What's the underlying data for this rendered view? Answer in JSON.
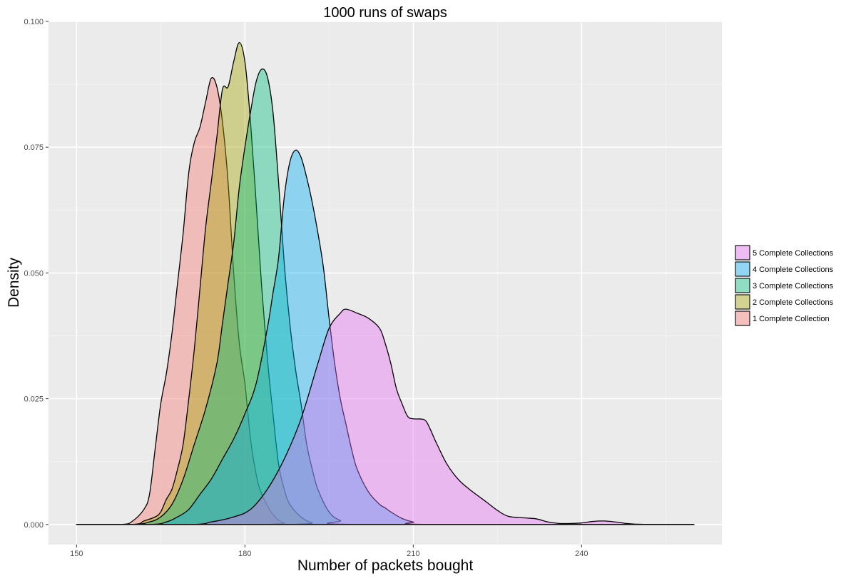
{
  "chart_data": {
    "type": "area",
    "title": "1000 runs of swaps",
    "xlabel": "Number of packets bought",
    "ylabel": "Density",
    "xlim": [
      145,
      265
    ],
    "ylim": [
      -0.004,
      0.1
    ],
    "xticks": [
      150,
      180,
      210,
      240
    ],
    "xtick_labels": [
      "150",
      "180",
      "210",
      "240"
    ],
    "yticks": [
      0,
      0.025,
      0.05,
      0.075,
      0.1
    ],
    "ytick_labels": [
      "0.000",
      "0.025",
      "0.050",
      "0.075",
      "0.100"
    ],
    "grid": true,
    "legend_position": "right",
    "series": [
      {
        "name": "1 Complete Collection",
        "color": "#F8766D",
        "points": [
          [
            150,
            0
          ],
          [
            158,
            0
          ],
          [
            160,
            0.0007
          ],
          [
            162,
            0.003
          ],
          [
            163,
            0.006
          ],
          [
            164,
            0.015
          ],
          [
            165,
            0.024
          ],
          [
            166,
            0.03
          ],
          [
            167,
            0.038
          ],
          [
            168,
            0.048
          ],
          [
            169,
            0.058
          ],
          [
            170,
            0.07
          ],
          [
            171,
            0.076
          ],
          [
            172,
            0.079
          ],
          [
            173,
            0.084
          ],
          [
            174,
            0.0887
          ],
          [
            175,
            0.087
          ],
          [
            176,
            0.08
          ],
          [
            177,
            0.068
          ],
          [
            178,
            0.05
          ],
          [
            179,
            0.036
          ],
          [
            180,
            0.028
          ],
          [
            181,
            0.017
          ],
          [
            182,
            0.01
          ],
          [
            183,
            0.006
          ],
          [
            185,
            0.002
          ],
          [
            187,
            0.0003
          ],
          [
            190,
            0
          ],
          [
            260,
            0
          ]
        ]
      },
      {
        "name": "2 Complete Collections",
        "color": "#A3A500",
        "points": [
          [
            150,
            0
          ],
          [
            160,
            0
          ],
          [
            162,
            0.0007
          ],
          [
            164,
            0.0015
          ],
          [
            165,
            0.0025
          ],
          [
            166,
            0.005
          ],
          [
            167,
            0.007
          ],
          [
            168,
            0.011
          ],
          [
            169,
            0.016
          ],
          [
            170,
            0.025
          ],
          [
            171,
            0.035
          ],
          [
            172,
            0.047
          ],
          [
            173,
            0.059
          ],
          [
            174,
            0.068
          ],
          [
            175,
            0.077
          ],
          [
            176,
            0.0865
          ],
          [
            177,
            0.087
          ],
          [
            178,
            0.092
          ],
          [
            179,
            0.0958
          ],
          [
            180,
            0.092
          ],
          [
            181,
            0.08
          ],
          [
            182,
            0.064
          ],
          [
            183,
            0.047
          ],
          [
            184,
            0.033
          ],
          [
            185,
            0.022
          ],
          [
            186,
            0.012
          ],
          [
            187,
            0.007
          ],
          [
            188,
            0.004
          ],
          [
            190,
            0.0015
          ],
          [
            192,
            0.0003
          ],
          [
            195,
            0
          ],
          [
            260,
            0
          ]
        ]
      },
      {
        "name": "3 Complete Collections",
        "color": "#00BF7D",
        "points": [
          [
            150,
            0
          ],
          [
            160,
            0
          ],
          [
            163,
            0.0005
          ],
          [
            165,
            0.0015
          ],
          [
            167,
            0.004
          ],
          [
            169,
            0.009
          ],
          [
            171,
            0.016
          ],
          [
            173,
            0.023
          ],
          [
            175,
            0.032
          ],
          [
            176,
            0.04
          ],
          [
            177,
            0.048
          ],
          [
            178,
            0.056
          ],
          [
            179,
            0.067
          ],
          [
            180,
            0.075
          ],
          [
            181,
            0.082
          ],
          [
            182,
            0.088
          ],
          [
            183,
            0.0905
          ],
          [
            184,
            0.089
          ],
          [
            185,
            0.082
          ],
          [
            186,
            0.068
          ],
          [
            187,
            0.052
          ],
          [
            188,
            0.04
          ],
          [
            189,
            0.031
          ],
          [
            190,
            0.024
          ],
          [
            191,
            0.016
          ],
          [
            192,
            0.011
          ],
          [
            193,
            0.007
          ],
          [
            195,
            0.0025
          ],
          [
            197,
            0.0008
          ],
          [
            200,
            0
          ],
          [
            260,
            0
          ]
        ]
      },
      {
        "name": "4 Complete Collections",
        "color": "#00B0F6",
        "points": [
          [
            150,
            0
          ],
          [
            163,
            0
          ],
          [
            166,
            0.0005
          ],
          [
            168,
            0.0015
          ],
          [
            170,
            0.003
          ],
          [
            172,
            0.006
          ],
          [
            174,
            0.009
          ],
          [
            176,
            0.013
          ],
          [
            178,
            0.017
          ],
          [
            180,
            0.022
          ],
          [
            182,
            0.028
          ],
          [
            184,
            0.039
          ],
          [
            185,
            0.046
          ],
          [
            186,
            0.053
          ],
          [
            187,
            0.065
          ],
          [
            188,
            0.072
          ],
          [
            189,
            0.0744
          ],
          [
            190,
            0.073
          ],
          [
            191,
            0.069
          ],
          [
            192,
            0.064
          ],
          [
            193,
            0.058
          ],
          [
            194,
            0.051
          ],
          [
            195,
            0.041
          ],
          [
            196,
            0.032
          ],
          [
            197,
            0.025
          ],
          [
            198,
            0.02
          ],
          [
            199,
            0.015
          ],
          [
            200,
            0.011
          ],
          [
            202,
            0.0065
          ],
          [
            204,
            0.004
          ],
          [
            205,
            0.0033
          ],
          [
            206,
            0.0025
          ],
          [
            208,
            0.0012
          ],
          [
            210,
            0.0005
          ],
          [
            213,
            0
          ],
          [
            260,
            0
          ]
        ]
      },
      {
        "name": "5 Complete Collections",
        "color": "#E76BF3",
        "points": [
          [
            150,
            0
          ],
          [
            170,
            0
          ],
          [
            174,
            0.0005
          ],
          [
            178,
            0.0015
          ],
          [
            181,
            0.003
          ],
          [
            184,
            0.007
          ],
          [
            187,
            0.013
          ],
          [
            190,
            0.021
          ],
          [
            193,
            0.032
          ],
          [
            195,
            0.039
          ],
          [
            197,
            0.042
          ],
          [
            198,
            0.0428
          ],
          [
            200,
            0.042
          ],
          [
            202,
            0.041
          ],
          [
            204,
            0.039
          ],
          [
            205,
            0.036
          ],
          [
            206,
            0.032
          ],
          [
            207,
            0.027
          ],
          [
            208,
            0.024
          ],
          [
            209,
            0.0215
          ],
          [
            210,
            0.021
          ],
          [
            212,
            0.0208
          ],
          [
            213,
            0.019
          ],
          [
            214,
            0.0165
          ],
          [
            216,
            0.012
          ],
          [
            218,
            0.009
          ],
          [
            220,
            0.007
          ],
          [
            223,
            0.0045
          ],
          [
            225,
            0.0028
          ],
          [
            227,
            0.0016
          ],
          [
            230,
            0.0013
          ],
          [
            232,
            0.0011
          ],
          [
            234,
            0.0005
          ],
          [
            236,
            0.0002
          ],
          [
            238,
            0.0002
          ],
          [
            240,
            0.0003
          ],
          [
            242,
            0.0006
          ],
          [
            244,
            0.0007
          ],
          [
            246,
            0.0005
          ],
          [
            248,
            0.0002
          ],
          [
            250,
            5e-05
          ],
          [
            253,
            0
          ],
          [
            260,
            0
          ]
        ]
      }
    ]
  }
}
